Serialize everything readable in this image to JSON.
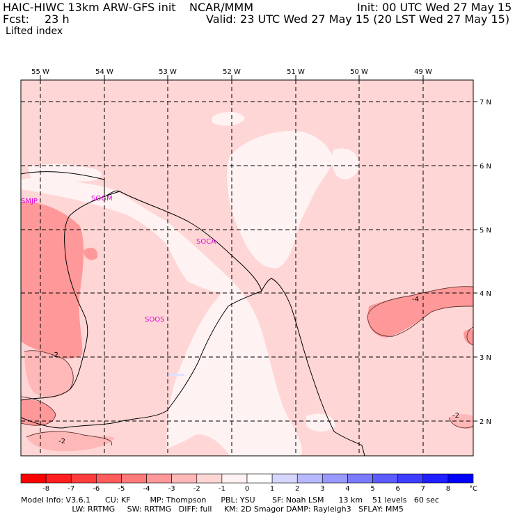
{
  "header": {
    "model": "HAIC-HIWC 13km ARW-GFS init",
    "org": "NCAR/MMM",
    "init": "Init: 00 UTC Wed 27 May 15",
    "fcst_label": "Fcst:",
    "fcst_value": "23 h",
    "valid": "Valid: 23 UTC Wed 27 May 15 (20 LST Wed 27 May 15)",
    "field": "Lifted index"
  },
  "map": {
    "lon_labels": [
      "55 W",
      "54 W",
      "53 W",
      "52 W",
      "51 W",
      "50 W",
      "49 W"
    ],
    "lat_labels": [
      "7 N",
      "6 N",
      "5 N",
      "4 N",
      "3 N",
      "2 N"
    ],
    "stations": [
      "SMJP",
      "SOGM",
      "SOCA",
      "SOOS"
    ],
    "contour_labels": [
      "-2",
      "-2",
      "-4",
      "-2"
    ]
  },
  "colorbar": {
    "ticks": [
      "-8",
      "-7",
      "-6",
      "-5",
      "-4",
      "-3",
      "-2",
      "-1",
      "0",
      "1",
      "2",
      "3",
      "4",
      "5",
      "6",
      "7",
      "8"
    ],
    "unit": "°C",
    "colors": [
      "#ff0000",
      "#ff1f1f",
      "#ff3d3d",
      "#ff5c5c",
      "#ff7a7a",
      "#ff9999",
      "#ffb8b8",
      "#ffd6d6",
      "#fff2f2",
      "#ffffff",
      "#d6d6ff",
      "#b8b8ff",
      "#9999ff",
      "#7a7aff",
      "#5c5cff",
      "#3d3dff",
      "#1f1fff",
      "#0000ff"
    ]
  },
  "footer": {
    "line1": "Model Info: V3.6.1      CU: KF        MP: Thompson      PBL: YSU       SF: Noah LSM      13 km    51 levels   60 sec",
    "line2": "                     LW: RRTMG     SW: RRTMG   DIFF: full     KM: 2D Smagor DAMP: Rayleigh3   SFLAY: MM5"
  }
}
